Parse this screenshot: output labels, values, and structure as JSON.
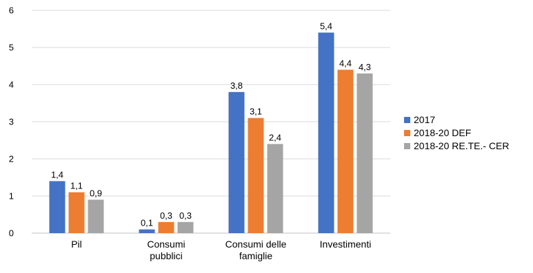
{
  "chart_data": {
    "type": "bar",
    "categories": [
      [
        "Pil"
      ],
      [
        "Consumi",
        "pubblici"
      ],
      [
        "Consumi delle",
        "famiglie"
      ],
      [
        "Investimenti"
      ]
    ],
    "series": [
      {
        "name": "2017",
        "color": "#4472C4",
        "values": [
          1.4,
          0.1,
          3.8,
          5.4
        ],
        "labels": [
          "1,4",
          "0,1",
          "3,8",
          "5,4"
        ]
      },
      {
        "name": "2018-20 DEF",
        "color": "#ED7D31",
        "values": [
          1.1,
          0.3,
          3.1,
          4.4
        ],
        "labels": [
          "1,1",
          "0,3",
          "3,1",
          "4,4"
        ]
      },
      {
        "name": "2018-20 RE.TE.- CER",
        "color": "#A5A5A5",
        "values": [
          0.9,
          0.3,
          2.4,
          4.3
        ],
        "labels": [
          "0,9",
          "0,3",
          "2,4",
          "4,3"
        ]
      }
    ],
    "ylim": [
      0,
      6
    ],
    "yticks": [
      "0",
      "1",
      "2",
      "3",
      "4",
      "5",
      "6"
    ],
    "ytick_values": [
      0,
      1,
      2,
      3,
      4,
      5,
      6
    ],
    "grid": true,
    "legend_position": "right"
  }
}
